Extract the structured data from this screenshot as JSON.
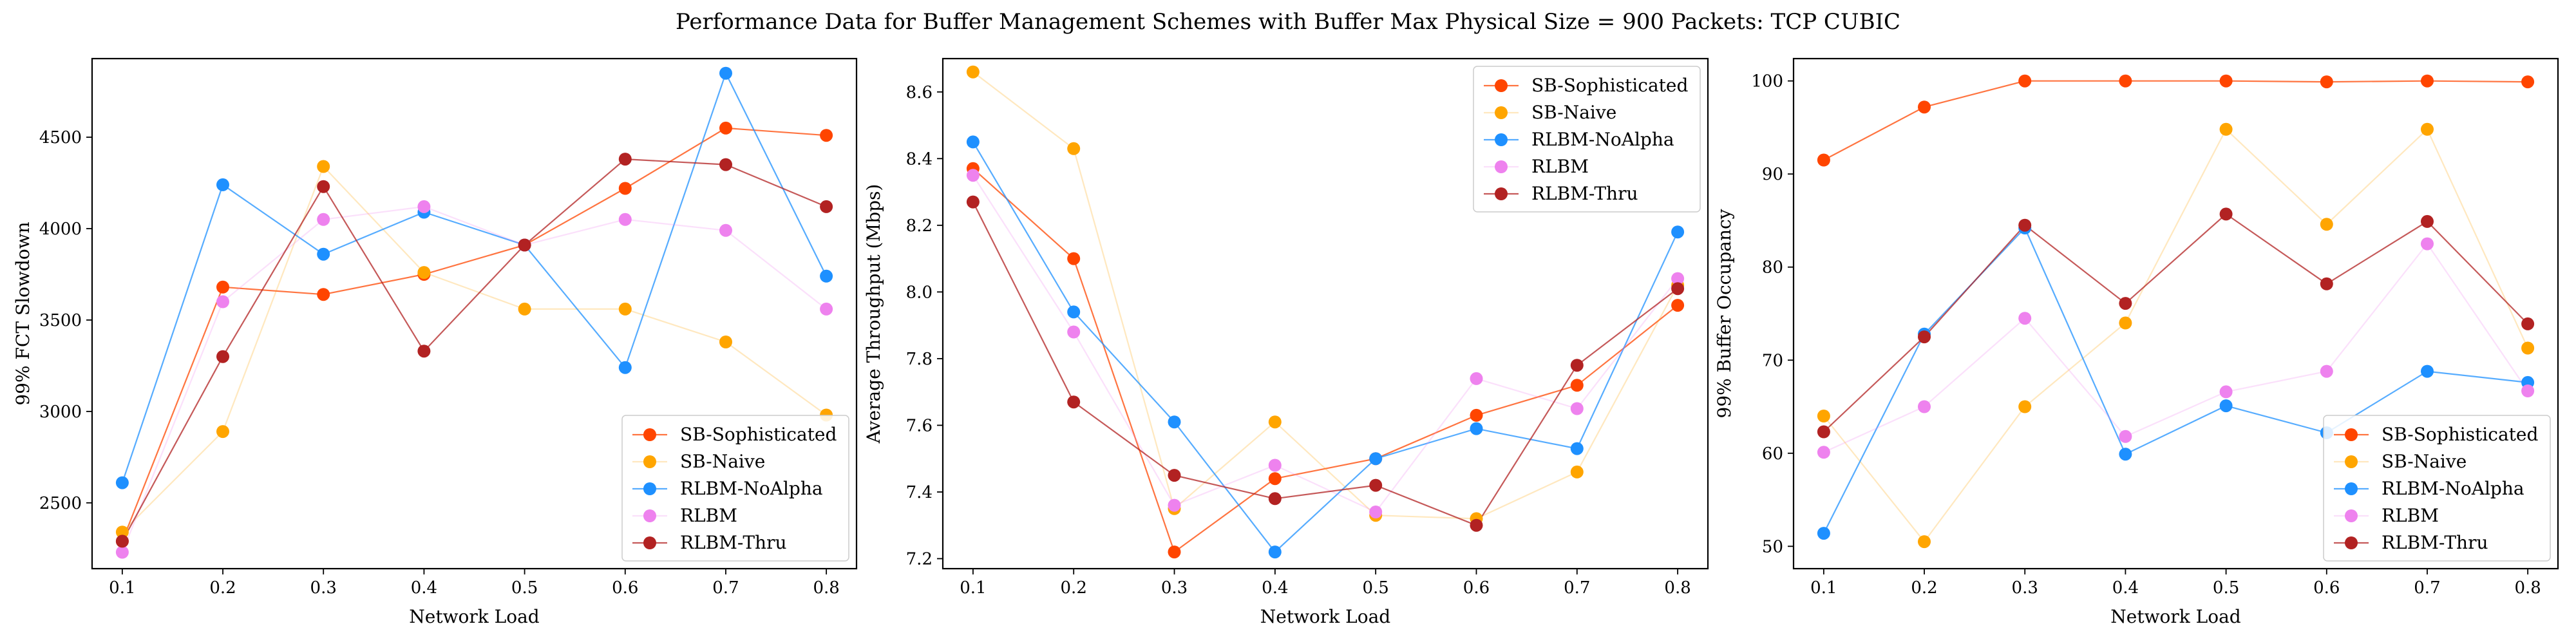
{
  "figure": {
    "title": "Performance Data for Buffer Management Schemes with Buffer Max Physical Size = 900 Packets: TCP CUBIC"
  },
  "series_styles": [
    {
      "name": "SB-Sophisticated",
      "color": "#ff4500",
      "line_opacity": 0.75
    },
    {
      "name": "SB-Naive",
      "color": "#ffa500",
      "line_opacity": 0.25
    },
    {
      "name": "RLBM-NoAlpha",
      "color": "#1e90ff",
      "line_opacity": 0.75
    },
    {
      "name": "RLBM",
      "color": "#ee82ee",
      "line_opacity": 0.25
    },
    {
      "name": "RLBM-Thru",
      "color": "#b22222",
      "line_opacity": 0.75
    }
  ],
  "chart_data": [
    {
      "type": "line",
      "xlabel": "Network Load",
      "ylabel": "99% FCT Slowdown",
      "x": [
        0.1,
        0.2,
        0.3,
        0.4,
        0.5,
        0.6,
        0.7,
        0.8
      ],
      "xticks": [
        "0.1",
        "0.2",
        "0.3",
        "0.4",
        "0.5",
        "0.6",
        "0.7",
        "0.8"
      ],
      "xlim": [
        0.07,
        0.83
      ],
      "ylim": [
        2140,
        4930
      ],
      "yticks": [
        2500,
        3000,
        3500,
        4000,
        4500
      ],
      "legend_loc": "lower-right",
      "series": [
        {
          "name": "SB-Sophisticated",
          "values": [
            2290,
            3680,
            3640,
            3750,
            3910,
            4220,
            4550,
            4510
          ]
        },
        {
          "name": "SB-Naive",
          "values": [
            2340,
            2890,
            4340,
            3760,
            3560,
            3560,
            3380,
            2980
          ]
        },
        {
          "name": "RLBM-NoAlpha",
          "values": [
            2610,
            4240,
            3860,
            4090,
            3910,
            3240,
            4850,
            3740
          ]
        },
        {
          "name": "RLBM",
          "values": [
            2230,
            3600,
            4050,
            4120,
            3910,
            4050,
            3990,
            3560
          ]
        },
        {
          "name": "RLBM-Thru",
          "values": [
            2290,
            3300,
            4230,
            3330,
            3910,
            4380,
            4350,
            4120
          ]
        }
      ]
    },
    {
      "type": "line",
      "xlabel": "Network Load",
      "ylabel": "Average Throughput (Mbps)",
      "x": [
        0.1,
        0.2,
        0.3,
        0.4,
        0.5,
        0.6,
        0.7,
        0.8
      ],
      "xticks": [
        "0.1",
        "0.2",
        "0.3",
        "0.4",
        "0.5",
        "0.6",
        "0.7",
        "0.8"
      ],
      "xlim": [
        0.07,
        0.83
      ],
      "ylim": [
        7.17,
        8.7
      ],
      "yticks": [
        7.2,
        7.4,
        7.6,
        7.8,
        8.0,
        8.2,
        8.4,
        8.6
      ],
      "yticklabels": [
        "7.2",
        "7.4",
        "7.6",
        "7.8",
        "8.0",
        "8.2",
        "8.4",
        "8.6"
      ],
      "legend_loc": "top-right",
      "series": [
        {
          "name": "SB-Sophisticated",
          "values": [
            8.37,
            8.1,
            7.22,
            7.44,
            7.5,
            7.63,
            7.72,
            7.96
          ]
        },
        {
          "name": "SB-Naive",
          "values": [
            8.66,
            8.43,
            7.35,
            7.61,
            7.33,
            7.32,
            7.46,
            8.02
          ]
        },
        {
          "name": "RLBM-NoAlpha",
          "values": [
            8.45,
            7.94,
            7.61,
            7.22,
            7.5,
            7.59,
            7.53,
            8.18
          ]
        },
        {
          "name": "RLBM",
          "values": [
            8.35,
            7.88,
            7.36,
            7.48,
            7.34,
            7.74,
            7.65,
            8.04
          ]
        },
        {
          "name": "RLBM-Thru",
          "values": [
            8.27,
            7.67,
            7.45,
            7.38,
            7.42,
            7.3,
            7.78,
            8.01
          ]
        }
      ]
    },
    {
      "type": "line",
      "xlabel": "Network Load",
      "ylabel": "99% Buffer Occupancy",
      "x": [
        0.1,
        0.2,
        0.3,
        0.4,
        0.5,
        0.6,
        0.7,
        0.8
      ],
      "xticks": [
        "0.1",
        "0.2",
        "0.3",
        "0.4",
        "0.5",
        "0.6",
        "0.7",
        "0.8"
      ],
      "xlim": [
        0.07,
        0.83
      ],
      "ylim": [
        47.6,
        102.4
      ],
      "yticks": [
        50,
        60,
        70,
        80,
        90,
        100
      ],
      "legend_loc": "lower-right",
      "series": [
        {
          "name": "SB-Sophisticated",
          "values": [
            91.5,
            97.2,
            100.0,
            100.0,
            100.0,
            99.9,
            100.0,
            99.9
          ]
        },
        {
          "name": "SB-Naive",
          "values": [
            64.0,
            50.5,
            65.0,
            74.0,
            94.8,
            84.6,
            94.8,
            71.3
          ]
        },
        {
          "name": "RLBM-NoAlpha",
          "values": [
            51.4,
            72.8,
            84.2,
            59.9,
            65.1,
            62.2,
            68.8,
            67.6
          ]
        },
        {
          "name": "RLBM",
          "values": [
            60.1,
            65.0,
            74.5,
            61.8,
            66.6,
            68.8,
            82.5,
            66.7
          ]
        },
        {
          "name": "RLBM-Thru",
          "values": [
            62.3,
            72.5,
            84.5,
            76.1,
            85.7,
            78.2,
            84.9,
            73.9
          ]
        }
      ]
    }
  ]
}
